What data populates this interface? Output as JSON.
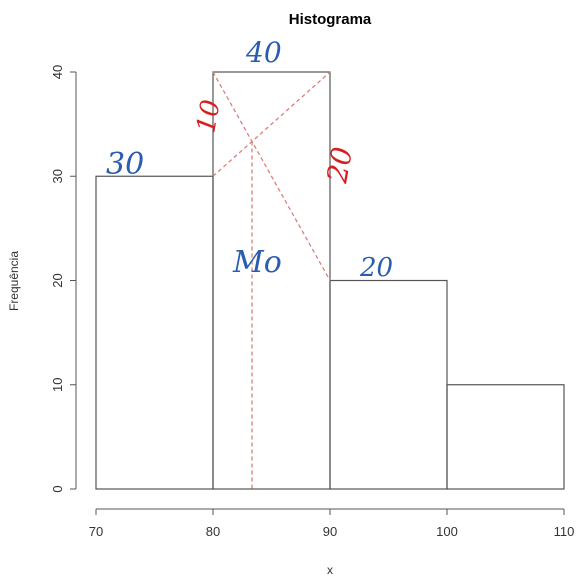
{
  "chart_data": {
    "type": "bar",
    "title": "Histograma",
    "xlabel": "x",
    "ylabel": "Frequência",
    "bins": [
      [
        70,
        80
      ],
      [
        80,
        90
      ],
      [
        90,
        100
      ],
      [
        100,
        110
      ]
    ],
    "values": [
      30,
      40,
      20,
      10
    ],
    "xlim": [
      70,
      110
    ],
    "ylim": [
      0,
      40
    ],
    "xticks": [
      "70",
      "80",
      "90",
      "100",
      "110"
    ],
    "yticks": [
      "0",
      "10",
      "20",
      "30",
      "40"
    ],
    "grid": false,
    "mode_construction": {
      "lines": [
        {
          "from": [
            80,
            30
          ],
          "to": [
            90,
            40
          ]
        },
        {
          "from": [
            80,
            40
          ],
          "to": [
            90,
            20
          ]
        }
      ],
      "mode_x": 83.33
    },
    "annotations": {
      "bar_labels": [
        "30",
        "40",
        "20"
      ],
      "diff_left": "10",
      "diff_right": "20",
      "mode_label": "Mo"
    },
    "colors": {
      "bars": "#555555",
      "construction": "#d9817a",
      "handwriting_blue": "#2a5db0",
      "handwriting_red": "#d62020"
    }
  }
}
